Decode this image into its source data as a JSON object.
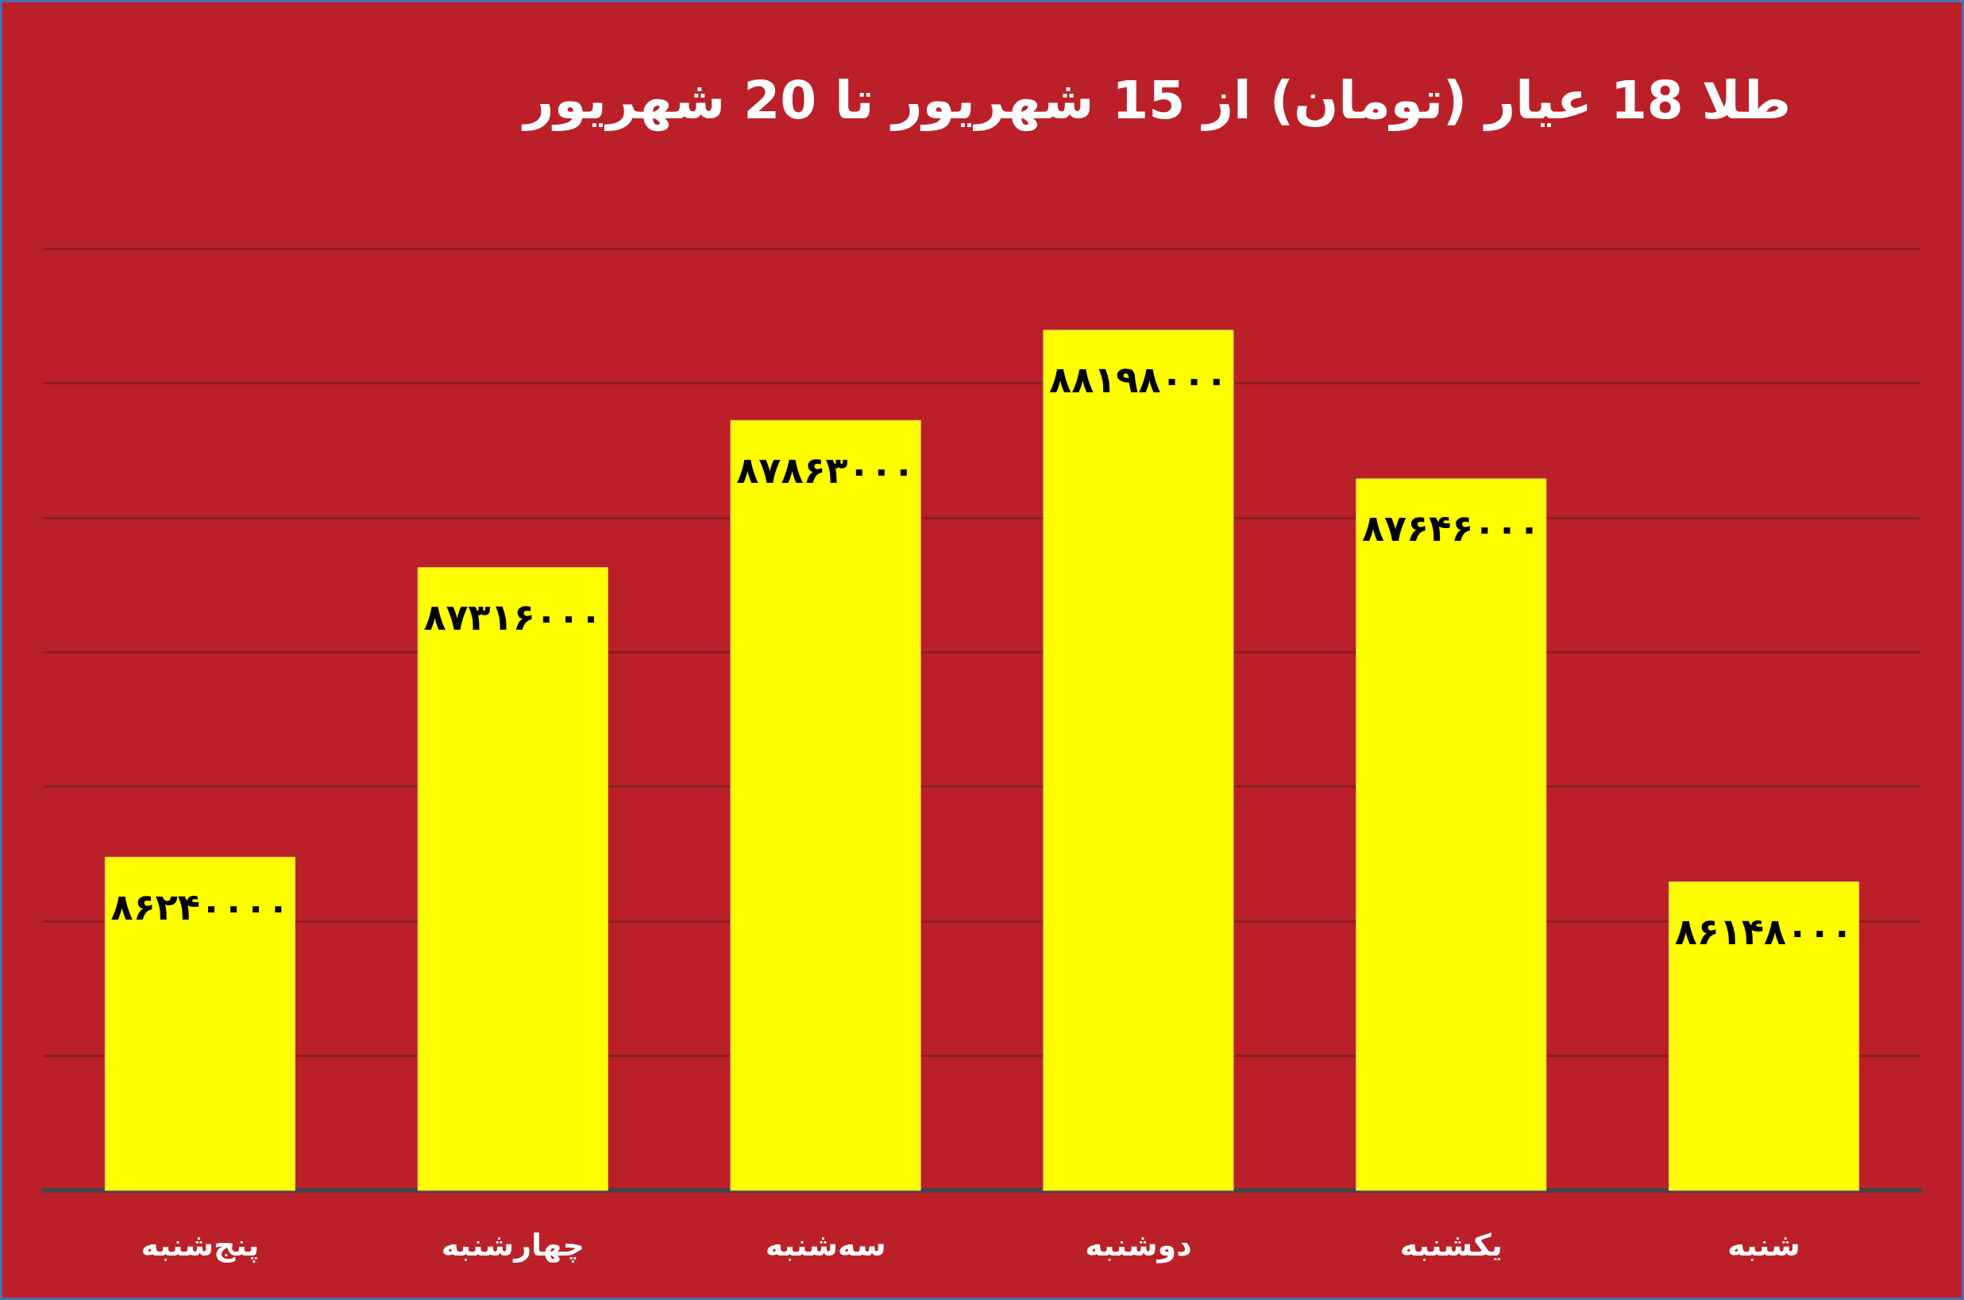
{
  "chart_data": {
    "type": "bar",
    "title": "طلا 18 عیار (تومان) از 15 شهریور تا 20 شهریور",
    "categories": [
      "پنج‌شنبه",
      "چهارشنبه",
      "سه‌شنبه",
      "دوشنبه",
      "یکشنبه",
      "شنبه"
    ],
    "values": [
      86240000,
      87316000,
      87863000,
      88198000,
      87646000,
      86148000
    ],
    "value_labels": [
      "۸۶۲۴۰۰۰۰",
      "۸۷۳۱۶۰۰۰",
      "۸۷۸۶۳۰۰۰",
      "۸۸۱۹۸۰۰۰",
      "۸۷۶۴۶۰۰۰",
      "۸۶۱۴۸۰۰۰"
    ],
    "color": "#ffff00",
    "ylim": [
      85000000,
      88500000
    ],
    "yticks": [
      {
        "value": 85000000,
        "label": null
      },
      {
        "value": 85500000,
        "label": null
      },
      {
        "value": 86000000,
        "label": null
      },
      {
        "value": 86500000,
        "label": null
      },
      {
        "value": 87000000,
        "label": null
      },
      {
        "value": 87500000,
        "label": null
      },
      {
        "value": 88000000,
        "label": null
      },
      {
        "value": 88500000,
        "label": null
      }
    ],
    "tick_labels": "x",
    "grid": "y"
  }
}
